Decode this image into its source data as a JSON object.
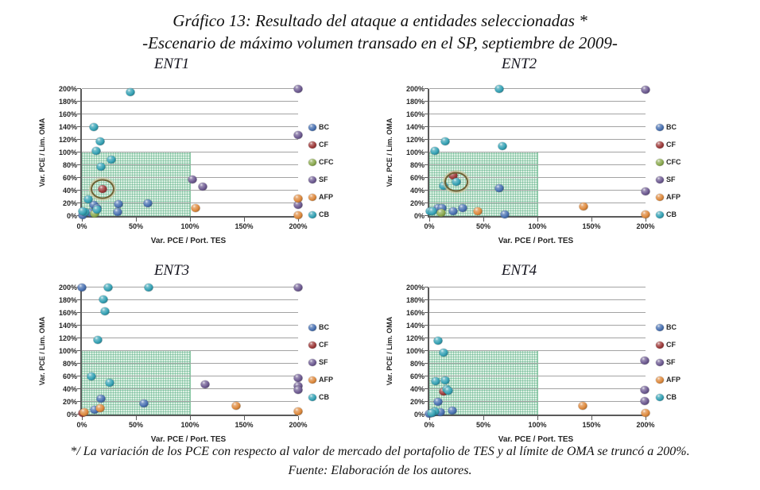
{
  "title": {
    "line1": "Gráfico 13: Resultado del ataque a entidades seleccionadas *",
    "line2": "-Escenario de máximo volumen transado en el SP, septiembre de 2009-"
  },
  "footnote": {
    "line1": "*/ La variación de los PCE con respecto al valor de mercado del portafolio de TES y al límite de OMA se truncó a 200%.",
    "line2": "Fuente: Elaboración de los autores."
  },
  "colors": {
    "BC": "#4A72B2",
    "CF": "#9E3B3B",
    "CFC": "#8CAB51",
    "SF": "#6F5C93",
    "AFP": "#DE8A3E",
    "CB": "#36A2B5",
    "shaded_region_green": "#ddf1e4",
    "gridline": "#a3a3a3",
    "annotation_ring": "#6f6134"
  },
  "chart_data": [
    {
      "type": "scatter",
      "title": "ENT1",
      "xlabel": "Var. PCE / Port. TES",
      "ylabel": "Var. PCE / Lim. OMA",
      "xlim": [
        0,
        200
      ],
      "ylim": [
        0,
        200
      ],
      "xticks": [
        "0%",
        "50%",
        "100%",
        "150%",
        "200%"
      ],
      "yticks": [
        "0%",
        "20%",
        "40%",
        "60%",
        "80%",
        "100%",
        "120%",
        "140%",
        "160%",
        "180%",
        "200%"
      ],
      "grid": "horizontal",
      "legend_position": "right",
      "shaded_region": {
        "x": [
          0,
          100
        ],
        "y": [
          0,
          100
        ]
      },
      "series": [
        {
          "name": "BC",
          "points": [
            [
              11,
              17
            ],
            [
              34,
              19
            ],
            [
              61,
              20
            ],
            [
              33,
              6
            ],
            [
              14,
              12
            ],
            [
              8,
              5
            ],
            [
              1,
              1
            ]
          ]
        },
        {
          "name": "CF",
          "points": [
            [
              19,
              43
            ]
          ]
        },
        {
          "name": "CFC",
          "points": [
            [
              12,
              4
            ]
          ]
        },
        {
          "name": "SF",
          "points": [
            [
              200,
              200
            ],
            [
              200,
              127
            ],
            [
              102,
              58
            ],
            [
              112,
              46
            ],
            [
              200,
              18
            ]
          ]
        },
        {
          "name": "AFP",
          "points": [
            [
              105,
              13
            ],
            [
              200,
              27
            ],
            [
              200,
              1
            ]
          ]
        },
        {
          "name": "CB",
          "points": [
            [
              45,
              195
            ],
            [
              11,
              140
            ],
            [
              17,
              117
            ],
            [
              13,
              103
            ],
            [
              27,
              89
            ],
            [
              18,
              77
            ],
            [
              6,
              26
            ],
            [
              14,
              10
            ],
            [
              3,
              6
            ],
            [
              1,
              7
            ]
          ]
        }
      ],
      "annotations": [
        {
          "shape": "ellipse",
          "x": 19,
          "y": 43
        }
      ]
    },
    {
      "type": "scatter",
      "title": "ENT2",
      "xlabel": "Var. PCE / Port. TES",
      "ylabel": "Var. PCE / Lim. OMA",
      "xlim": [
        0,
        200
      ],
      "ylim": [
        0,
        200
      ],
      "xticks": [
        "0%",
        "50%",
        "100%",
        "150%",
        "200%"
      ],
      "yticks": [
        "0%",
        "20%",
        "40%",
        "60%",
        "80%",
        "100%",
        "120%",
        "140%",
        "160%",
        "180%",
        "200%"
      ],
      "grid": "horizontal",
      "legend_position": "right",
      "shaded_region": {
        "x": [
          0,
          100
        ],
        "y": [
          0,
          100
        ]
      },
      "series": [
        {
          "name": "BC",
          "points": [
            [
              8,
              13
            ],
            [
              12,
              12
            ],
            [
              22,
              7
            ],
            [
              31,
              12
            ],
            [
              65,
              44
            ],
            [
              70,
              3
            ]
          ]
        },
        {
          "name": "CF",
          "points": [
            [
              22,
              64
            ]
          ]
        },
        {
          "name": "CFC",
          "points": [
            [
              11,
              5
            ]
          ]
        },
        {
          "name": "SF",
          "points": [
            [
              200,
              199
            ],
            [
              200,
              39
            ]
          ]
        },
        {
          "name": "AFP",
          "points": [
            [
              45,
              7
            ],
            [
              143,
              15
            ],
            [
              200,
              3
            ]
          ]
        },
        {
          "name": "CB",
          "points": [
            [
              65,
              200
            ],
            [
              15,
              118
            ],
            [
              68,
              110
            ],
            [
              5,
              102
            ],
            [
              13,
              47
            ],
            [
              25,
              54
            ],
            [
              1,
              8
            ],
            [
              3,
              7
            ]
          ]
        }
      ],
      "annotations": [
        {
          "shape": "ellipse",
          "x": 25,
          "y": 54
        }
      ]
    },
    {
      "type": "scatter",
      "title": "ENT3",
      "xlabel": "Var. PCE / Port. TES",
      "ylabel": "Var. PCE / Lim. OMA",
      "xlim": [
        0,
        200
      ],
      "ylim": [
        0,
        200
      ],
      "xticks": [
        "0%",
        "50%",
        "100%",
        "150%",
        "200%"
      ],
      "yticks": [
        "0%",
        "20%",
        "40%",
        "60%",
        "80%",
        "100%",
        "120%",
        "140%",
        "160%",
        "180%",
        "200%"
      ],
      "grid": "horizontal",
      "legend_position": "right",
      "shaded_region": {
        "x": [
          0,
          100
        ],
        "y": [
          0,
          100
        ]
      },
      "series": [
        {
          "name": "BC",
          "points": [
            [
              0,
              200
            ],
            [
              18,
              25
            ],
            [
              57,
              18
            ],
            [
              12,
              7
            ]
          ]
        },
        {
          "name": "CF",
          "points": [
            [
              1,
              2
            ]
          ]
        },
        {
          "name": "SF",
          "points": [
            [
              200,
              200
            ],
            [
              114,
              48
            ],
            [
              200,
              58
            ],
            [
              200,
              45
            ],
            [
              200,
              39
            ]
          ]
        },
        {
          "name": "AFP",
          "points": [
            [
              143,
              14
            ],
            [
              17,
              10
            ],
            [
              2,
              4
            ],
            [
              200,
              5
            ]
          ]
        },
        {
          "name": "CB",
          "points": [
            [
              24,
              200
            ],
            [
              62,
              200
            ],
            [
              20,
              181
            ],
            [
              21,
              163
            ],
            [
              15,
              117
            ],
            [
              9,
              60
            ],
            [
              26,
              50
            ]
          ]
        }
      ],
      "annotations": []
    },
    {
      "type": "scatter",
      "title": "ENT4",
      "xlabel": "Var. PCE / Port. TES",
      "ylabel": "Var. PCE / Lim. OMA",
      "xlim": [
        0,
        200
      ],
      "ylim": [
        0,
        200
      ],
      "xticks": [
        "0%",
        "50%",
        "100%",
        "150%",
        "200%"
      ],
      "yticks": [
        "0%",
        "20%",
        "40%",
        "60%",
        "80%",
        "100%",
        "120%",
        "140%",
        "160%",
        "180%",
        "200%"
      ],
      "grid": "horizontal",
      "legend_position": "right",
      "shaded_region": {
        "x": [
          0,
          100
        ],
        "y": [
          0,
          100
        ]
      },
      "series": [
        {
          "name": "BC",
          "points": [
            [
              8,
              20
            ],
            [
              10,
              4
            ],
            [
              21,
              6
            ],
            [
              3,
              3
            ],
            [
              0,
              1
            ]
          ]
        },
        {
          "name": "CF",
          "points": [
            [
              13,
              36
            ]
          ]
        },
        {
          "name": "SF",
          "points": [
            [
              199,
              85
            ],
            [
              199,
              39
            ],
            [
              199,
              21
            ]
          ]
        },
        {
          "name": "AFP",
          "points": [
            [
              142,
              14
            ],
            [
              200,
              2
            ]
          ]
        },
        {
          "name": "CB",
          "points": [
            [
              8,
              116
            ],
            [
              13,
              97
            ],
            [
              6,
              53
            ],
            [
              15,
              54
            ],
            [
              16,
              40
            ],
            [
              18,
              38
            ],
            [
              5,
              5
            ],
            [
              2,
              2
            ]
          ]
        }
      ],
      "annotations": []
    }
  ]
}
